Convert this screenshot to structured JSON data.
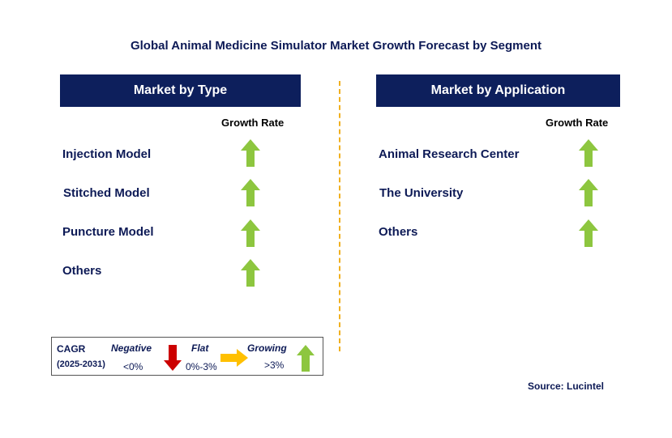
{
  "title": "Global Animal Medicine Simulator Market Growth Forecast by Segment",
  "colors": {
    "header_bg": "#0d1f5c",
    "text": "#0d1a56",
    "growing": "#8dc63f",
    "negative": "#cc0000",
    "flat": "#ffc000",
    "divider": "#f0b020"
  },
  "left_panel": {
    "header": "Market by Type",
    "growth_label": "Growth Rate",
    "items": [
      {
        "label": "Injection Model",
        "trend": "growing",
        "icon": "up-arrow-icon"
      },
      {
        "label": "Stitched Model",
        "trend": "growing",
        "icon": "up-arrow-icon"
      },
      {
        "label": "Puncture Model",
        "trend": "growing",
        "icon": "up-arrow-icon"
      },
      {
        "label": "Others",
        "trend": "growing",
        "icon": "up-arrow-icon"
      }
    ]
  },
  "right_panel": {
    "header": "Market by Application",
    "growth_label": "Growth Rate",
    "items": [
      {
        "label": "Animal Research Center",
        "trend": "growing",
        "icon": "up-arrow-icon"
      },
      {
        "label": "The University",
        "trend": "growing",
        "icon": "up-arrow-icon"
      },
      {
        "label": "Others",
        "trend": "growing",
        "icon": "up-arrow-icon"
      }
    ]
  },
  "legend": {
    "cagr": "CAGR",
    "years": "(2025-2031)",
    "negative": {
      "label": "Negative",
      "range": "<0%",
      "icon": "down-arrow-icon"
    },
    "flat": {
      "label": "Flat",
      "range": "0%-3%",
      "icon": "right-arrow-icon"
    },
    "growing": {
      "label": "Growing",
      "range": ">3%",
      "icon": "up-arrow-icon"
    }
  },
  "source": "Source: Lucintel"
}
